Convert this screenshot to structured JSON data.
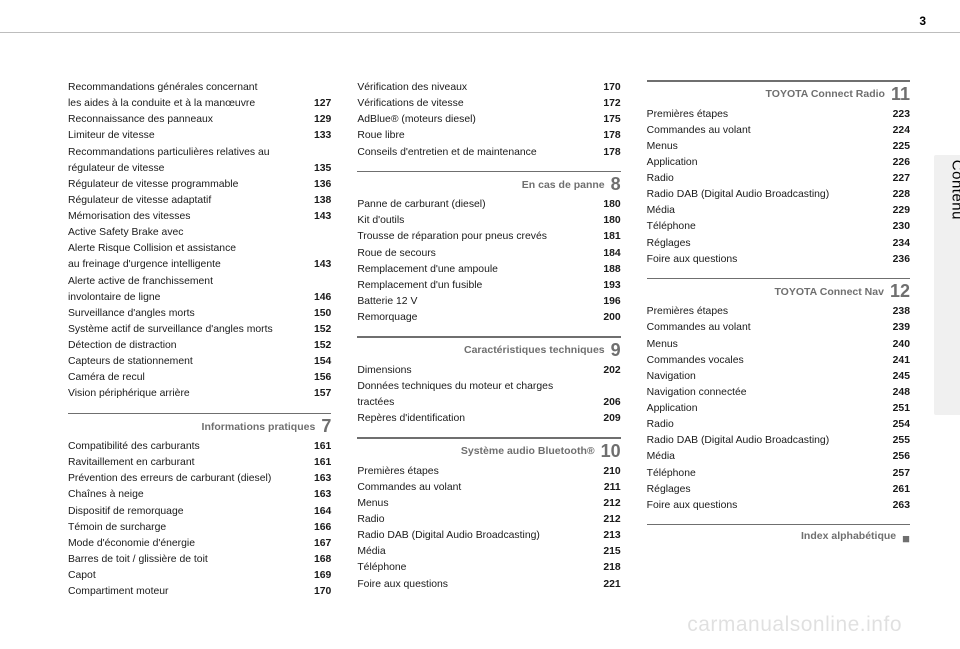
{
  "page": {
    "number": "3",
    "side_label": "Contenu",
    "watermark": "carmanualsonline.info"
  },
  "col1": {
    "items": [
      {
        "label": "Recommandations générales concernant",
        "pg": ""
      },
      {
        "label": "les aides à la conduite et à la manœuvre",
        "pg": "127"
      },
      {
        "label": "Reconnaissance des panneaux",
        "pg": "129"
      },
      {
        "label": "Limiteur de vitesse",
        "pg": "133"
      },
      {
        "label": "Recommandations particulières relatives au",
        "pg": ""
      },
      {
        "label": "régulateur de vitesse",
        "pg": "135"
      },
      {
        "label": "Régulateur de vitesse programmable",
        "pg": "136"
      },
      {
        "label": "Régulateur de vitesse adaptatif",
        "pg": "138"
      },
      {
        "label": "Mémorisation des vitesses",
        "pg": "143"
      },
      {
        "label": "Active Safety Brake avec",
        "pg": ""
      },
      {
        "label": "Alerte Risque Collision et assistance",
        "pg": ""
      },
      {
        "label": "au freinage d'urgence intelligente",
        "pg": "143"
      },
      {
        "label": "Alerte active de franchissement",
        "pg": ""
      },
      {
        "label": "involontaire de ligne",
        "pg": "146"
      },
      {
        "label": "Surveillance d'angles morts",
        "pg": "150"
      },
      {
        "label": "Système actif de surveillance d'angles morts",
        "pg": "152"
      },
      {
        "label": "Détection de distraction",
        "pg": "152"
      },
      {
        "label": "Capteurs de stationnement",
        "pg": "154"
      },
      {
        "label": "Caméra de recul",
        "pg": "156"
      },
      {
        "label": "Vision périphérique arrière",
        "pg": "157"
      }
    ],
    "sect7": {
      "title": "Informations pratiques",
      "num": "7",
      "items": [
        {
          "label": "Compatibilité des carburants",
          "pg": "161"
        },
        {
          "label": "Ravitaillement en carburant",
          "pg": "161"
        },
        {
          "label": "Prévention des erreurs de carburant (diesel)",
          "pg": "163"
        },
        {
          "label": "Chaînes à neige",
          "pg": "163"
        },
        {
          "label": "Dispositif de remorquage",
          "pg": "164"
        },
        {
          "label": "Témoin de surcharge",
          "pg": "166"
        },
        {
          "label": "Mode d'économie d'énergie",
          "pg": "167"
        },
        {
          "label": "Barres de toit / glissière de toit",
          "pg": "168"
        },
        {
          "label": "Capot",
          "pg": "169"
        },
        {
          "label": "Compartiment moteur",
          "pg": "170"
        }
      ]
    }
  },
  "col2": {
    "itemsTop": [
      {
        "label": "Vérification des niveaux",
        "pg": "170"
      },
      {
        "label": "Vérifications de vitesse",
        "pg": "172"
      },
      {
        "label": "AdBlue® (moteurs diesel)",
        "pg": "175"
      },
      {
        "label": "Roue libre",
        "pg": "178"
      },
      {
        "label": "Conseils d'entretien et de maintenance",
        "pg": "178"
      }
    ],
    "sect8": {
      "title": "En cas de panne",
      "num": "8",
      "items": [
        {
          "label": "Panne de carburant (diesel)",
          "pg": "180"
        },
        {
          "label": "Kit d'outils",
          "pg": "180"
        },
        {
          "label": "Trousse de réparation pour pneus crevés",
          "pg": "181"
        },
        {
          "label": "Roue de secours",
          "pg": "184"
        },
        {
          "label": "Remplacement d'une ampoule",
          "pg": "188"
        },
        {
          "label": "Remplacement d'un fusible",
          "pg": "193"
        },
        {
          "label": "Batterie 12 V",
          "pg": "196"
        },
        {
          "label": "Remorquage",
          "pg": "200"
        }
      ]
    },
    "sect9": {
      "title": "Caractéristiques techniques",
      "num": "9",
      "items": [
        {
          "label": "Dimensions",
          "pg": "202"
        },
        {
          "label": "Données techniques du moteur et charges",
          "pg": ""
        },
        {
          "label": "tractées",
          "pg": "206"
        },
        {
          "label": "Repères d'identification",
          "pg": "209"
        }
      ]
    },
    "sect10": {
      "title": "Système audio Bluetooth®",
      "num": "10",
      "items": [
        {
          "label": "Premières étapes",
          "pg": "210"
        },
        {
          "label": "Commandes au volant",
          "pg": "211"
        },
        {
          "label": "Menus",
          "pg": "212"
        },
        {
          "label": "Radio",
          "pg": "212"
        },
        {
          "label": "Radio DAB (Digital Audio Broadcasting)",
          "pg": "213"
        },
        {
          "label": "Média",
          "pg": "215"
        },
        {
          "label": "Téléphone",
          "pg": "218"
        },
        {
          "label": "Foire aux questions",
          "pg": "221"
        }
      ]
    }
  },
  "col3": {
    "sect11": {
      "title": "TOYOTA Connect Radio",
      "num": "11",
      "items": [
        {
          "label": "Premières étapes",
          "pg": "223"
        },
        {
          "label": "Commandes au volant",
          "pg": "224"
        },
        {
          "label": "Menus",
          "pg": "225"
        },
        {
          "label": "Application",
          "pg": "226"
        },
        {
          "label": "Radio",
          "pg": "227"
        },
        {
          "label": "Radio DAB (Digital Audio Broadcasting)",
          "pg": "228"
        },
        {
          "label": "Média",
          "pg": "229"
        },
        {
          "label": "Téléphone",
          "pg": "230"
        },
        {
          "label": "Réglages",
          "pg": "234"
        },
        {
          "label": "Foire aux questions",
          "pg": "236"
        }
      ]
    },
    "sect12": {
      "title": "TOYOTA Connect Nav",
      "num": "12",
      "items": [
        {
          "label": "Premières étapes",
          "pg": "238"
        },
        {
          "label": "Commandes au volant",
          "pg": "239"
        },
        {
          "label": "Menus",
          "pg": "240"
        },
        {
          "label": "Commandes vocales",
          "pg": "241"
        },
        {
          "label": "Navigation",
          "pg": "245"
        },
        {
          "label": "Navigation connectée",
          "pg": "248"
        },
        {
          "label": "Application",
          "pg": "251"
        },
        {
          "label": "Radio",
          "pg": "254"
        },
        {
          "label": "Radio DAB (Digital Audio Broadcasting)",
          "pg": "255"
        },
        {
          "label": "Média",
          "pg": "256"
        },
        {
          "label": "Téléphone",
          "pg": "257"
        },
        {
          "label": "Réglages",
          "pg": "261"
        },
        {
          "label": "Foire aux questions",
          "pg": "263"
        }
      ]
    },
    "index": {
      "title": "Index alphabétique",
      "sq": "■"
    }
  }
}
